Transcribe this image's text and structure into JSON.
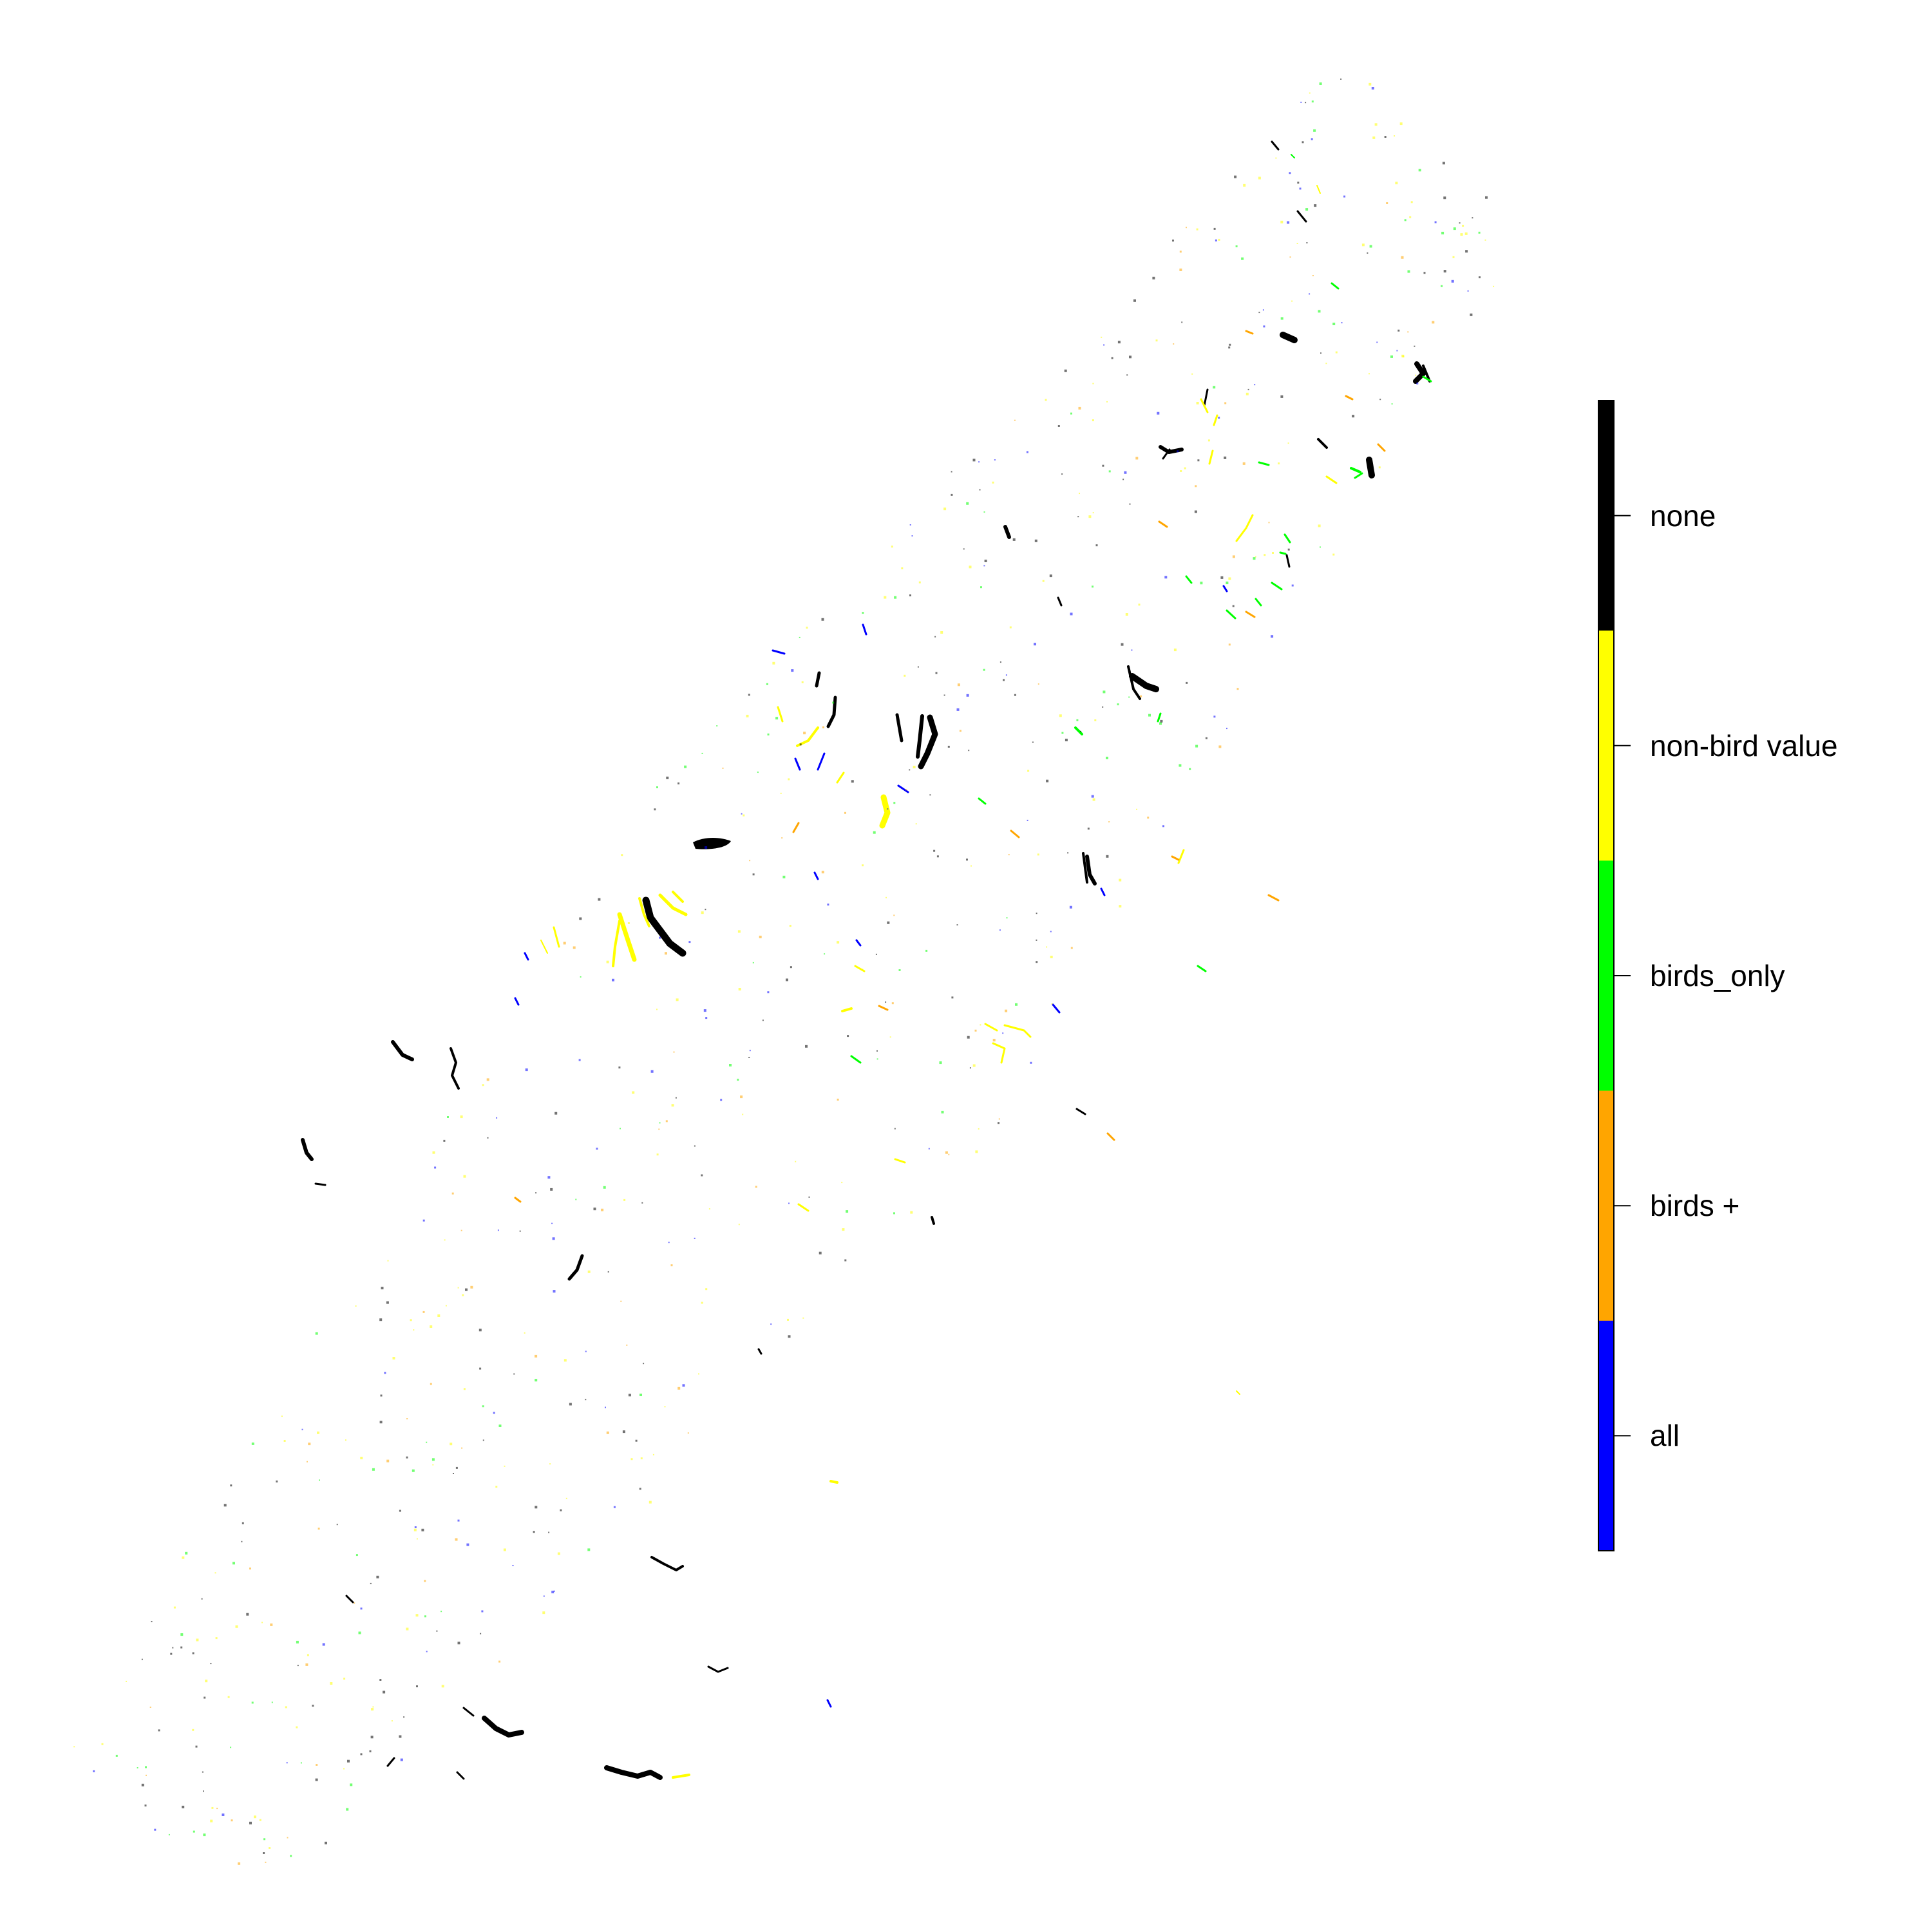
{
  "map": {
    "background": "#ffffff",
    "category_colors": {
      "all": "#0000ff",
      "birds_plus": "#ffa500",
      "birds_only": "#00ff00",
      "non_bird_value": "#ffff00",
      "none": "#000000"
    }
  },
  "legend": {
    "items": [
      {
        "key": "none",
        "label": "none",
        "color": "#000000"
      },
      {
        "key": "non_bird_value",
        "label": "non-bird value",
        "color": "#ffff00"
      },
      {
        "key": "birds_only",
        "label": "birds_only",
        "color": "#00ff00"
      },
      {
        "key": "birds_plus",
        "label": "birds +",
        "color": "#ffa500"
      },
      {
        "key": "all",
        "label": "all",
        "color": "#0000ff"
      }
    ]
  }
}
